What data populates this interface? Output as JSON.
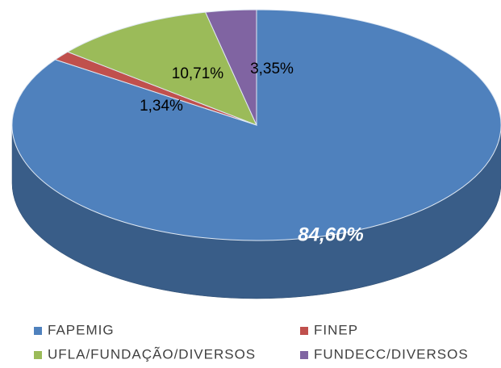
{
  "chart_data": {
    "type": "pie",
    "categories": [
      "FAPEMIG",
      "FINEP",
      "UFLA/FUNDAÇÃO/DIVERSOS",
      "FUNDECC/DIVERSOS"
    ],
    "values": [
      84.6,
      1.34,
      10.71,
      3.35
    ],
    "value_labels": [
      "84,60%",
      "1,34%",
      "10,71%",
      "3,35%"
    ],
    "colors": [
      "#4f81bd",
      "#c0504d",
      "#9bbb59",
      "#8064a2"
    ],
    "legend": "bottom"
  }
}
